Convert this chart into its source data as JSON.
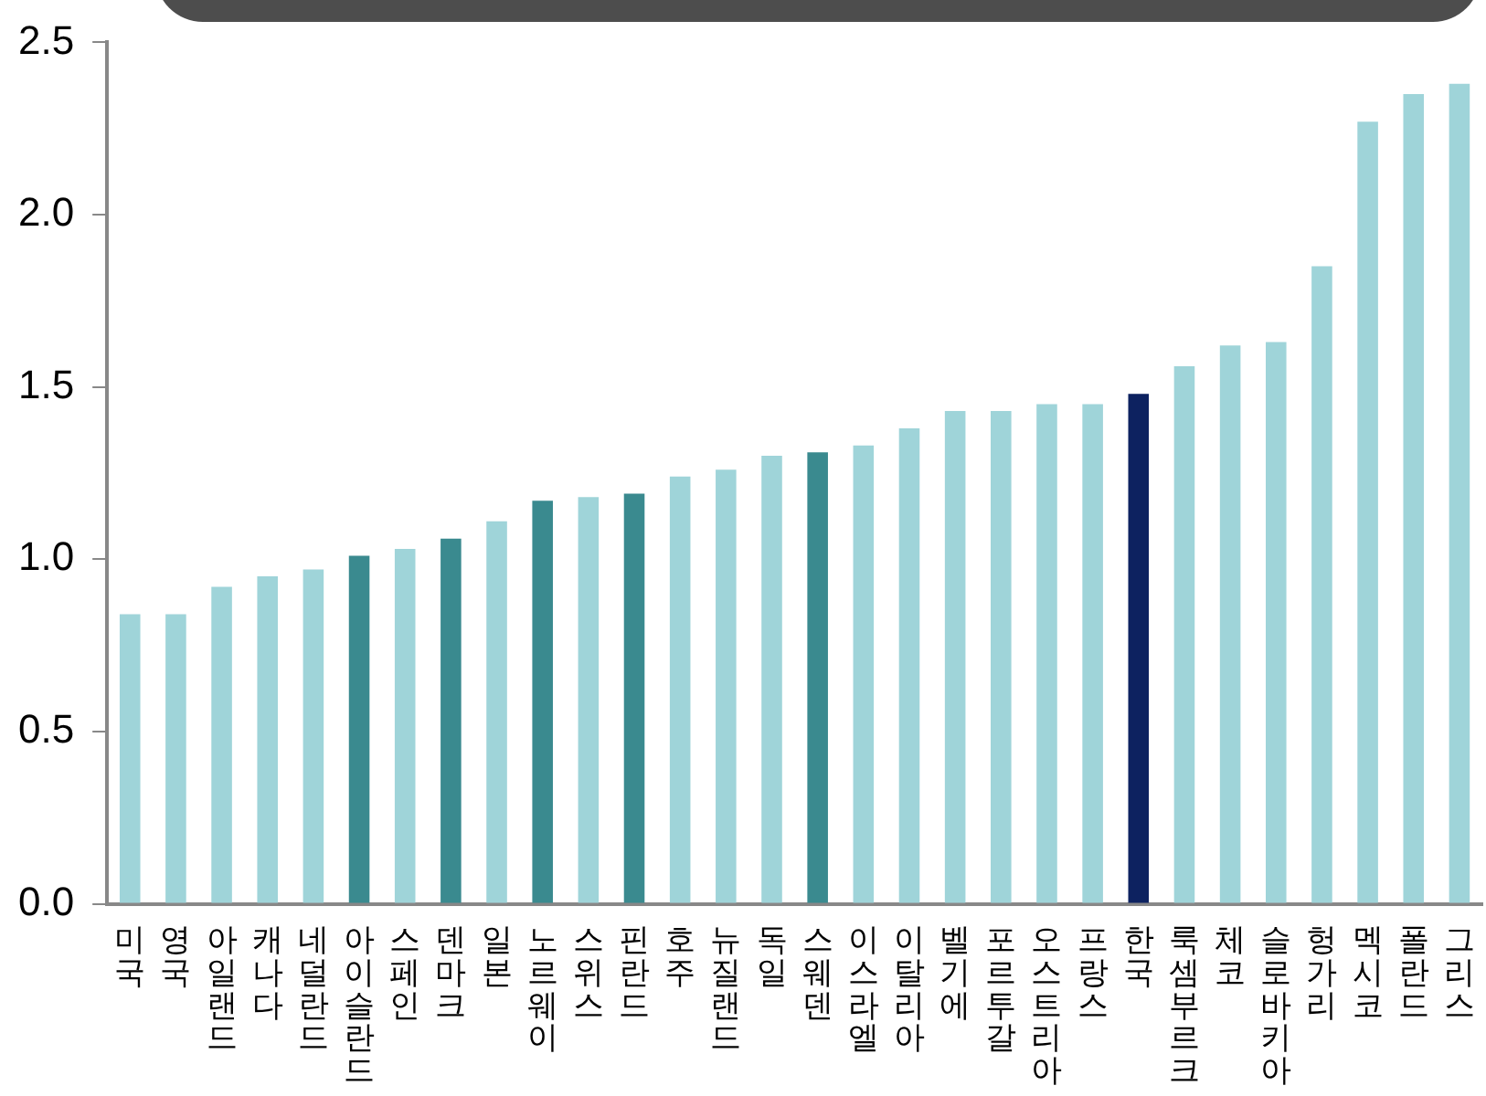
{
  "chart_data": {
    "type": "bar",
    "categories": [
      "미국",
      "영국",
      "아일랜드",
      "캐나다",
      "네덜란드",
      "아이슬란드",
      "스페인",
      "덴마크",
      "일본",
      "노르웨이",
      "스위스",
      "핀란드",
      "호주",
      "뉴질랜드",
      "독일",
      "스웨덴",
      "이스라엘",
      "이탈리아",
      "벨기에",
      "포르투갈",
      "오스트리아",
      "프랑스",
      "한국",
      "룩셈부르크",
      "체코",
      "슬로바키아",
      "헝가리",
      "멕시코",
      "폴란드",
      "그리스"
    ],
    "values": [
      0.84,
      0.84,
      0.92,
      0.95,
      0.97,
      1.01,
      1.03,
      1.06,
      1.11,
      1.17,
      1.18,
      1.19,
      1.24,
      1.26,
      1.3,
      1.31,
      1.33,
      1.38,
      1.43,
      1.43,
      1.45,
      1.45,
      1.48,
      1.56,
      1.62,
      1.63,
      1.85,
      2.27,
      2.35,
      2.38
    ],
    "colors": [
      "#9fd4d9",
      "#9fd4d9",
      "#9fd4d9",
      "#9fd4d9",
      "#9fd4d9",
      "#3a8a8f",
      "#9fd4d9",
      "#3a8a8f",
      "#9fd4d9",
      "#3a8a8f",
      "#9fd4d9",
      "#3a8a8f",
      "#9fd4d9",
      "#9fd4d9",
      "#9fd4d9",
      "#3a8a8f",
      "#9fd4d9",
      "#9fd4d9",
      "#9fd4d9",
      "#9fd4d9",
      "#9fd4d9",
      "#9fd4d9",
      "#0d2260",
      "#9fd4d9",
      "#9fd4d9",
      "#9fd4d9",
      "#9fd4d9",
      "#9fd4d9",
      "#9fd4d9",
      "#9fd4d9"
    ],
    "ylim": [
      0,
      2.5
    ],
    "yticks": [
      {
        "value": 0,
        "label": "0.0"
      },
      {
        "value": 0.5,
        "label": "0.5"
      },
      {
        "value": 1,
        "label": "1.0"
      },
      {
        "value": 1.5,
        "label": "1.5"
      },
      {
        "value": 2,
        "label": "2.0"
      },
      {
        "value": 2.5,
        "label": "2.5"
      }
    ],
    "grid": false,
    "legend": false
  }
}
